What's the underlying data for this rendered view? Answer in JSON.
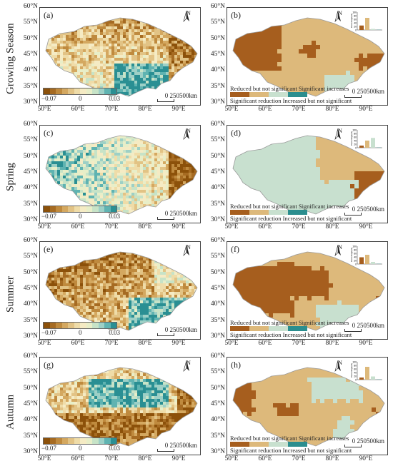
{
  "rows": [
    {
      "label": "Growing Season",
      "left_letter": "(a)",
      "right_letter": "(b)",
      "left_variant": 0,
      "right_variant": 0
    },
    {
      "label": "Spring",
      "left_letter": "(c)",
      "right_letter": "(d)",
      "left_variant": 1,
      "right_variant": 1
    },
    {
      "label": "Summer",
      "left_letter": "(e)",
      "right_letter": "(f)",
      "left_variant": 2,
      "right_variant": 2
    },
    {
      "label": "Autumn",
      "left_letter": "(g)",
      "right_letter": "(h)",
      "left_variant": 3,
      "right_variant": 3
    }
  ],
  "lat_ticks": [
    "60°N",
    "55°N",
    "50°N",
    "45°N",
    "40°N",
    "35°N",
    "30°N"
  ],
  "lon_ticks": [
    "50°E",
    "60°E",
    "70°E",
    "80°E",
    "90°E"
  ],
  "north_label": "N",
  "scale": {
    "label": "0 250500km"
  },
  "continuous_legend": {
    "min": "−0.07",
    "mid": "0",
    "max": "0.03",
    "colors": [
      "#8c510a",
      "#a66b22",
      "#bf8a3e",
      "#d4a860",
      "#e2c385",
      "#efdca8",
      "#f5ebc4",
      "#e8eec8",
      "#c7e3c7",
      "#9dd0c6",
      "#5fb3b1",
      "#2a8f93"
    ]
  },
  "category_legend": {
    "top": "Reduced but not significant Significant increases",
    "bottom": "Significant reduction Increased but not significant",
    "colors": [
      "#a65e1e",
      "#ddb97b",
      "#c8e0cf",
      "#2b8e8f"
    ]
  },
  "inset": {
    "ylabel": "Percentage(%)",
    "yticks": [
      "100",
      "80",
      "60",
      "40",
      "20",
      "0"
    ],
    "values": [
      [
        25,
        68,
        6,
        1
      ],
      [
        12,
        40,
        55,
        1
      ],
      [
        38,
        52,
        12,
        1
      ],
      [
        12,
        72,
        18,
        1
      ]
    ]
  }
}
